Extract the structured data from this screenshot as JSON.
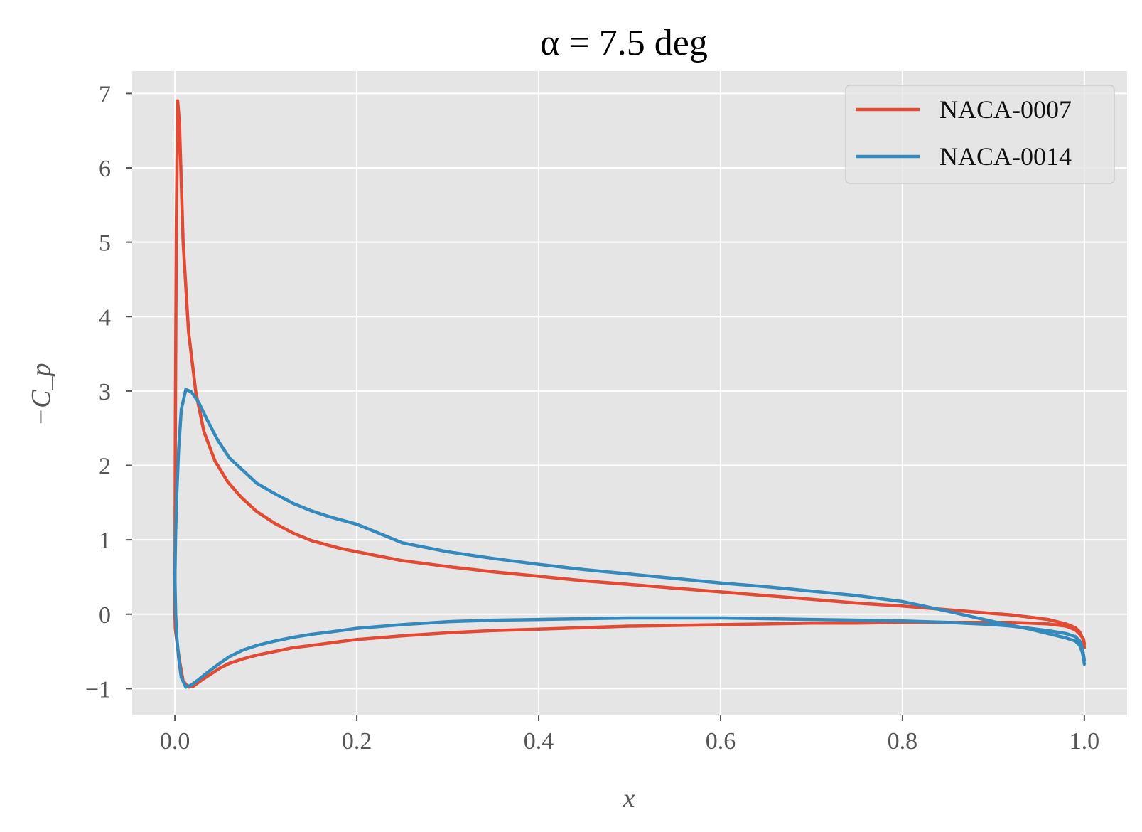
{
  "chart_data": {
    "type": "line",
    "title": "α = 7.5 deg",
    "xlabel": "x",
    "ylabel": "−C_p",
    "xlim": [
      -0.047,
      1.047
    ],
    "ylim": [
      -1.35,
      7.3
    ],
    "x_ticks": [
      0.0,
      0.2,
      0.4,
      0.6,
      0.8,
      1.0
    ],
    "x_tick_labels": [
      "0.0",
      "0.2",
      "0.4",
      "0.6",
      "0.8",
      "1.0"
    ],
    "y_ticks": [
      -1,
      0,
      1,
      2,
      3,
      4,
      5,
      6,
      7
    ],
    "y_tick_labels": [
      "−1",
      "0",
      "1",
      "2",
      "3",
      "4",
      "5",
      "6",
      "7"
    ],
    "grid": true,
    "legend_position": "top-right",
    "series": [
      {
        "name": "NACA-0007",
        "color": "#E24A33",
        "x": [
          1.0,
          0.999,
          0.995,
          0.99,
          0.98,
          0.96,
          0.94,
          0.92,
          0.9,
          0.85,
          0.8,
          0.75,
          0.7,
          0.65,
          0.6,
          0.55,
          0.5,
          0.45,
          0.4,
          0.35,
          0.3,
          0.25,
          0.2,
          0.18,
          0.15,
          0.13,
          0.11,
          0.09,
          0.073,
          0.058,
          0.044,
          0.032,
          0.023,
          0.015,
          0.009,
          0.005,
          0.003,
          0.0015,
          0.0005,
          0.0,
          0.0005,
          0.0015,
          0.003,
          0.005,
          0.009,
          0.015,
          0.02,
          0.03,
          0.04,
          0.05,
          0.06,
          0.075,
          0.09,
          0.11,
          0.13,
          0.15,
          0.18,
          0.2,
          0.25,
          0.3,
          0.35,
          0.4,
          0.45,
          0.5,
          0.55,
          0.6,
          0.65,
          0.7,
          0.75,
          0.8,
          0.85,
          0.9,
          0.92,
          0.94,
          0.96,
          0.98,
          0.99,
          0.995,
          0.999,
          1.0
        ],
        "y": [
          -0.45,
          -0.35,
          -0.24,
          -0.18,
          -0.13,
          -0.07,
          -0.04,
          -0.01,
          0.01,
          0.06,
          0.11,
          0.15,
          0.2,
          0.25,
          0.3,
          0.35,
          0.4,
          0.45,
          0.51,
          0.57,
          0.64,
          0.72,
          0.84,
          0.89,
          0.99,
          1.09,
          1.22,
          1.38,
          1.57,
          1.78,
          2.06,
          2.45,
          2.98,
          3.8,
          5.0,
          6.6,
          6.9,
          5.2,
          2.6,
          0.0,
          -0.2,
          -0.3,
          -0.45,
          -0.62,
          -0.9,
          -0.98,
          -0.97,
          -0.88,
          -0.8,
          -0.72,
          -0.66,
          -0.6,
          -0.55,
          -0.5,
          -0.45,
          -0.42,
          -0.37,
          -0.34,
          -0.29,
          -0.25,
          -0.22,
          -0.2,
          -0.18,
          -0.16,
          -0.15,
          -0.14,
          -0.13,
          -0.12,
          -0.12,
          -0.11,
          -0.11,
          -0.11,
          -0.11,
          -0.12,
          -0.13,
          -0.16,
          -0.21,
          -0.27,
          -0.33,
          -0.4
        ]
      },
      {
        "name": "NACA-0014",
        "color": "#348ABD",
        "x": [
          1.0,
          0.998,
          0.995,
          0.99,
          0.98,
          0.96,
          0.94,
          0.92,
          0.9,
          0.85,
          0.8,
          0.75,
          0.7,
          0.65,
          0.6,
          0.55,
          0.5,
          0.45,
          0.4,
          0.35,
          0.3,
          0.25,
          0.2,
          0.17,
          0.15,
          0.13,
          0.11,
          0.09,
          0.075,
          0.06,
          0.047,
          0.036,
          0.026,
          0.018,
          0.012,
          0.007,
          0.004,
          0.002,
          0.0008,
          0.0,
          0.0008,
          0.002,
          0.004,
          0.007,
          0.012,
          0.018,
          0.026,
          0.036,
          0.047,
          0.06,
          0.075,
          0.09,
          0.11,
          0.13,
          0.15,
          0.17,
          0.2,
          0.25,
          0.3,
          0.35,
          0.4,
          0.45,
          0.5,
          0.55,
          0.6,
          0.65,
          0.7,
          0.75,
          0.8,
          0.85,
          0.9,
          0.92,
          0.94,
          0.96,
          0.98,
          0.99,
          0.995,
          0.998,
          1.0
        ],
        "y": [
          -0.67,
          -0.52,
          -0.42,
          -0.36,
          -0.32,
          -0.26,
          -0.2,
          -0.15,
          -0.1,
          0.04,
          0.17,
          0.25,
          0.31,
          0.37,
          0.42,
          0.48,
          0.54,
          0.6,
          0.67,
          0.75,
          0.84,
          0.96,
          1.21,
          1.31,
          1.39,
          1.49,
          1.62,
          1.76,
          1.93,
          2.1,
          2.34,
          2.6,
          2.85,
          2.99,
          3.02,
          2.75,
          2.2,
          1.6,
          1.1,
          0.5,
          0.0,
          -0.3,
          -0.58,
          -0.85,
          -0.98,
          -0.95,
          -0.88,
          -0.78,
          -0.68,
          -0.57,
          -0.48,
          -0.42,
          -0.36,
          -0.31,
          -0.27,
          -0.24,
          -0.19,
          -0.14,
          -0.1,
          -0.08,
          -0.07,
          -0.06,
          -0.05,
          -0.05,
          -0.05,
          -0.06,
          -0.07,
          -0.08,
          -0.09,
          -0.11,
          -0.14,
          -0.16,
          -0.19,
          -0.22,
          -0.26,
          -0.3,
          -0.36,
          -0.46,
          -0.62
        ]
      }
    ]
  }
}
